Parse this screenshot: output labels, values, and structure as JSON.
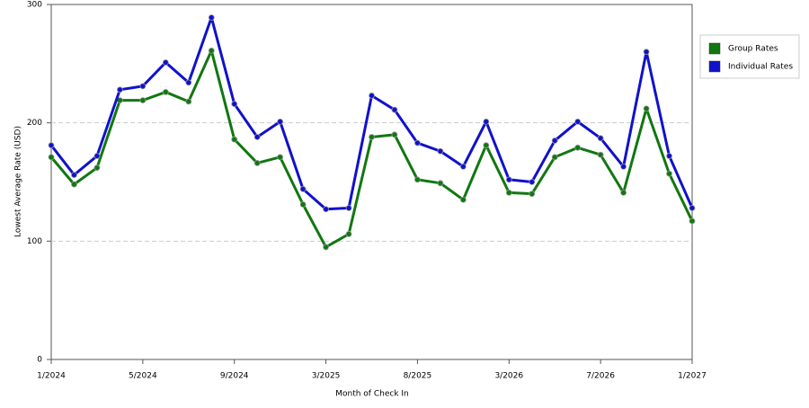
{
  "chart_data": {
    "type": "line",
    "x_label": "Month of Check In",
    "y_label": "Lowest Average Rate (USD)",
    "categories": [
      "1/2024",
      null,
      null,
      null,
      "5/2024",
      null,
      null,
      null,
      "9/2024",
      null,
      null,
      null,
      "3/2025",
      null,
      null,
      null,
      "8/2025",
      null,
      null,
      null,
      "3/2026",
      null,
      null,
      null,
      "7/2026",
      null,
      null,
      null,
      "1/2027"
    ],
    "series": [
      {
        "name": "Group Rates",
        "color": "#117711",
        "values": [
          171,
          148,
          162,
          219,
          219,
          226,
          218,
          261,
          186,
          166,
          171,
          131,
          95,
          106,
          188,
          190,
          152,
          149,
          135,
          181,
          141,
          140,
          171,
          179,
          173,
          141,
          212,
          157,
          117
        ]
      },
      {
        "name": "Individual Rates",
        "color": "#1111cc",
        "values": [
          181,
          156,
          172,
          228,
          231,
          251,
          234,
          289,
          216,
          188,
          201,
          144,
          127,
          128,
          223,
          211,
          183,
          176,
          163,
          201,
          152,
          150,
          185,
          201,
          187,
          163,
          260,
          172,
          128
        ]
      }
    ],
    "ylim": [
      0,
      300
    ],
    "yticks": [
      0,
      100,
      200,
      300
    ],
    "grid": true,
    "legend": "top-right"
  }
}
